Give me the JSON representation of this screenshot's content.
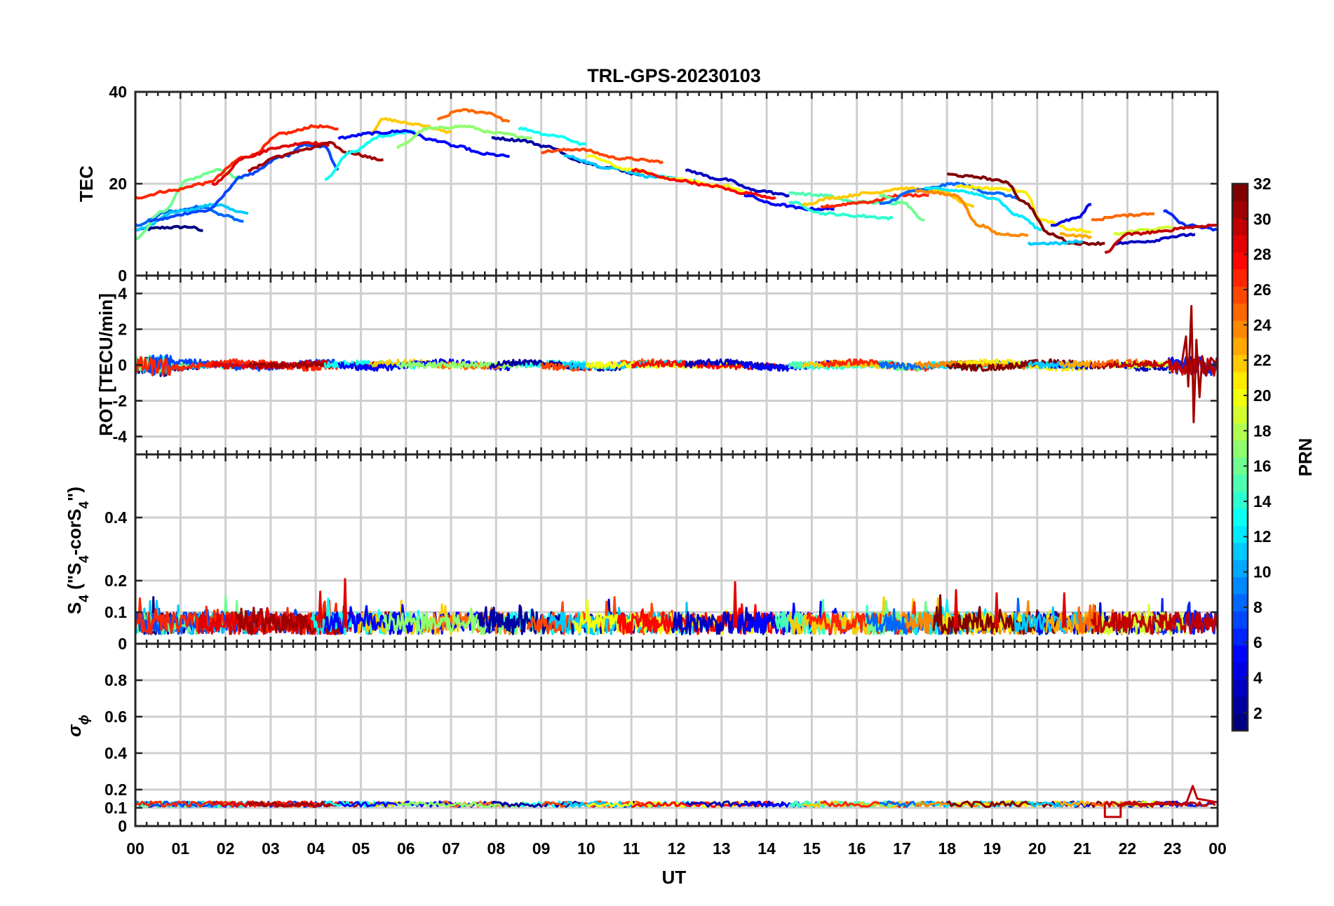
{
  "chart_data": {
    "type": "line",
    "title": "TRL-GPS-20230103",
    "xlabel": "UT",
    "x_ticks": [
      "00",
      "01",
      "02",
      "03",
      "04",
      "05",
      "06",
      "07",
      "08",
      "09",
      "10",
      "11",
      "12",
      "13",
      "14",
      "15",
      "16",
      "17",
      "18",
      "19",
      "20",
      "21",
      "22",
      "23",
      "00"
    ],
    "xlim_hours": [
      0,
      24
    ],
    "grid": true,
    "colorbar": {
      "label": "PRN",
      "range": [
        1,
        32
      ],
      "ticks": [
        "2",
        "4",
        "6",
        "8",
        "10",
        "12",
        "14",
        "16",
        "18",
        "20",
        "22",
        "24",
        "26",
        "28",
        "30",
        "32"
      ],
      "colormap": "jet"
    },
    "panels": [
      {
        "name": "tec",
        "ylabel": "TEC",
        "ylim": [
          0,
          40
        ],
        "yticks": [
          "0",
          "20",
          "40"
        ],
        "series": [
          {
            "prn": 1,
            "points": [
              [
                0,
                10
              ],
              [
                0.8,
                10.5
              ],
              [
                1.2,
                10.6
              ],
              [
                1.5,
                9.8
              ]
            ]
          },
          {
            "prn": 8,
            "points": [
              [
                0,
                11
              ],
              [
                0.8,
                14
              ],
              [
                1.5,
                15
              ],
              [
                2,
                13
              ],
              [
                2.4,
                11.8
              ]
            ]
          },
          {
            "prn": 11,
            "points": [
              [
                0,
                10
              ],
              [
                1,
                14
              ],
              [
                1.8,
                15.5
              ],
              [
                2.2,
                14.2
              ],
              [
                2.5,
                13.5
              ]
            ]
          },
          {
            "prn": 16,
            "points": [
              [
                0,
                8
              ],
              [
                0.6,
                14
              ],
              [
                1.2,
                21
              ],
              [
                1.8,
                23
              ],
              [
                2.4,
                21
              ]
            ]
          },
          {
            "prn": 7,
            "points": [
              [
                0.3,
                12
              ],
              [
                1.5,
                14
              ],
              [
                2.5,
                22
              ],
              [
                3.3,
                26
              ],
              [
                3.8,
                28.5
              ],
              [
                4.2,
                28
              ],
              [
                4.5,
                23
              ]
            ]
          },
          {
            "prn": 27,
            "points": [
              [
                0,
                17
              ],
              [
                0.8,
                18.5
              ],
              [
                1.5,
                20
              ],
              [
                2.5,
                26
              ],
              [
                3.3,
                31
              ],
              [
                4,
                32.5
              ],
              [
                4.5,
                32
              ]
            ]
          },
          {
            "prn": 29,
            "points": [
              [
                1.7,
                20
              ],
              [
                2.5,
                26
              ],
              [
                3.2,
                28
              ],
              [
                3.8,
                29
              ],
              [
                4.3,
                28.5
              ]
            ]
          },
          {
            "prn": 31,
            "points": [
              [
                2.5,
                23
              ],
              [
                3.2,
                26
              ],
              [
                3.8,
                27.5
              ],
              [
                4.3,
                28.8
              ],
              [
                4.7,
                26.8
              ],
              [
                5.5,
                25.2
              ]
            ]
          },
          {
            "prn": 13,
            "points": [
              [
                4.2,
                21
              ],
              [
                4.8,
                27
              ],
              [
                5.5,
                30.5
              ],
              [
                6.2,
                31.5
              ]
            ]
          },
          {
            "prn": 22,
            "points": [
              [
                5.2,
                31
              ],
              [
                5.5,
                34
              ],
              [
                6.2,
                33
              ],
              [
                7,
                31.2
              ]
            ]
          },
          {
            "prn": 5,
            "points": [
              [
                4.5,
                30
              ],
              [
                5.3,
                31
              ],
              [
                6,
                31.5
              ],
              [
                6.6,
                29.5
              ],
              [
                7.2,
                28
              ],
              [
                7.7,
                26.5
              ],
              [
                8.3,
                26
              ]
            ]
          },
          {
            "prn": 25,
            "points": [
              [
                6.7,
                34
              ],
              [
                7.2,
                36
              ],
              [
                7.8,
                35.5
              ],
              [
                8.3,
                33.5
              ]
            ]
          },
          {
            "prn": 17,
            "points": [
              [
                5.8,
                28
              ],
              [
                6.5,
                32
              ],
              [
                7.3,
                32.5
              ],
              [
                8,
                31
              ],
              [
                8.8,
                30
              ]
            ]
          },
          {
            "prn": 13,
            "points": [
              [
                8.5,
                32
              ],
              [
                9.3,
                30.5
              ],
              [
                10,
                28.5
              ]
            ]
          },
          {
            "prn": 2,
            "points": [
              [
                7.9,
                30
              ],
              [
                8.5,
                29.5
              ],
              [
                9.2,
                28
              ],
              [
                9.8,
                25
              ],
              [
                10.5,
                23.5
              ],
              [
                11.2,
                22
              ]
            ]
          },
          {
            "prn": 26,
            "points": [
              [
                9,
                27
              ],
              [
                9.8,
                27.5
              ],
              [
                10.8,
                25.5
              ],
              [
                11.7,
                24.8
              ]
            ]
          },
          {
            "prn": 11,
            "points": [
              [
                9.5,
                26
              ],
              [
                10.5,
                23.5
              ],
              [
                11.5,
                21.5
              ],
              [
                12.5,
                20.5
              ]
            ]
          },
          {
            "prn": 20,
            "points": [
              [
                10,
                26
              ],
              [
                11,
                23
              ],
              [
                12,
                21
              ],
              [
                13,
                19.5
              ],
              [
                13.8,
                17.5
              ]
            ]
          },
          {
            "prn": 28,
            "points": [
              [
                11,
                23
              ],
              [
                12,
                20.8
              ],
              [
                12.8,
                19.5
              ],
              [
                13.5,
                18
              ],
              [
                14.2,
                17
              ]
            ]
          },
          {
            "prn": 3,
            "points": [
              [
                12.2,
                22.8
              ],
              [
                13,
                21
              ],
              [
                13.8,
                18.5
              ],
              [
                14.5,
                17.5
              ]
            ]
          },
          {
            "prn": 5,
            "points": [
              [
                13.5,
                17.5
              ],
              [
                14.2,
                15.5
              ],
              [
                14.9,
                14.5
              ],
              [
                15.5,
                14.5
              ]
            ]
          },
          {
            "prn": 14,
            "points": [
              [
                14.5,
                16
              ],
              [
                15.3,
                13.5
              ],
              [
                16,
                13
              ],
              [
                16.8,
                12.5
              ]
            ]
          },
          {
            "prn": 15,
            "points": [
              [
                14.5,
                18
              ],
              [
                15.2,
                17.5
              ],
              [
                16,
                16
              ],
              [
                16.9,
                15.8
              ]
            ]
          },
          {
            "prn": 22,
            "points": [
              [
                14.8,
                15.5
              ],
              [
                15.5,
                17
              ],
              [
                16.3,
                18
              ],
              [
                17,
                19
              ],
              [
                17.8,
                18.5
              ],
              [
                18.6,
                15
              ]
            ]
          },
          {
            "prn": 27,
            "points": [
              [
                15.2,
                15
              ],
              [
                16.2,
                16
              ],
              [
                17,
                17.5
              ],
              [
                17.6,
                17.5
              ]
            ]
          },
          {
            "prn": 16,
            "points": [
              [
                16.5,
                17.5
              ],
              [
                17,
                16
              ],
              [
                17.5,
                12
              ]
            ]
          },
          {
            "prn": 8,
            "points": [
              [
                16.5,
                15.5
              ],
              [
                17.3,
                18.5
              ],
              [
                18.2,
                20
              ],
              [
                19,
                18
              ],
              [
                19.6,
                17
              ]
            ]
          },
          {
            "prn": 12,
            "points": [
              [
                17.5,
                19
              ],
              [
                18.2,
                18.5
              ],
              [
                19,
                17
              ],
              [
                19.6,
                13
              ],
              [
                20.1,
                10
              ]
            ]
          },
          {
            "prn": 24,
            "points": [
              [
                17.3,
                18.5
              ],
              [
                18.2,
                17.5
              ],
              [
                18.7,
                11
              ],
              [
                19.2,
                9
              ],
              [
                19.8,
                8.8
              ]
            ]
          },
          {
            "prn": 21,
            "points": [
              [
                18.2,
                19.5
              ],
              [
                19,
                19
              ],
              [
                19.7,
                18.5
              ],
              [
                20.1,
                12
              ],
              [
                20.8,
                10
              ],
              [
                21.2,
                9.5
              ]
            ]
          },
          {
            "prn": 32,
            "points": [
              [
                18,
                22
              ],
              [
                18.6,
                21.5
              ],
              [
                19.3,
                20.5
              ],
              [
                19.7,
                16
              ],
              [
                20.3,
                9
              ],
              [
                20.8,
                7
              ],
              [
                21.5,
                7
              ]
            ]
          },
          {
            "prn": 4,
            "points": [
              [
                20.3,
                11
              ],
              [
                20.9,
                12.5
              ],
              [
                21.2,
                15.5
              ]
            ]
          },
          {
            "prn": 11,
            "points": [
              [
                19.8,
                7
              ],
              [
                20.5,
                7
              ],
              [
                21,
                7.5
              ]
            ]
          },
          {
            "prn": 23,
            "points": [
              [
                20.5,
                9
              ],
              [
                21.2,
                8.5
              ]
            ]
          },
          {
            "prn": 25,
            "points": [
              [
                21.2,
                12
              ],
              [
                21.8,
                13
              ],
              [
                22.6,
                13.5
              ]
            ]
          },
          {
            "prn": 3,
            "points": [
              [
                21.7,
                7
              ],
              [
                22.5,
                7.5
              ],
              [
                23,
                8.5
              ],
              [
                23.5,
                9
              ]
            ]
          },
          {
            "prn": 6,
            "points": [
              [
                22.8,
                14
              ],
              [
                23.3,
                11
              ],
              [
                24,
                10
              ]
            ]
          },
          {
            "prn": 19,
            "points": [
              [
                21.7,
                9
              ],
              [
                22.4,
                10
              ],
              [
                23,
                10.5
              ]
            ]
          },
          {
            "prn": 30,
            "points": [
              [
                21.5,
                5
              ],
              [
                22,
                9
              ],
              [
                22.7,
                9.5
              ],
              [
                23.3,
                10.5
              ],
              [
                24,
                11
              ]
            ]
          }
        ]
      },
      {
        "name": "rot",
        "ylabel": "ROT [TECU/min]",
        "ylim": [
          -5,
          5
        ],
        "yticks": [
          "-4",
          "-2",
          "0",
          "2",
          "4"
        ],
        "noise_amplitude": [
          0.1,
          0.6
        ],
        "spike_range": [
          -3.2,
          3.3
        ]
      },
      {
        "name": "s4",
        "ylabel_main": "S",
        "ylabel_sub": "4",
        "ylabel_mid": " (\"S",
        "ylabel_sub2": "4",
        "ylabel_mid2": "-corS",
        "ylabel_sub3": "4",
        "ylabel_tail": "\")",
        "ylim": [
          0,
          0.6
        ],
        "yticks": [
          "0",
          "0.1",
          "0.2",
          "0.4"
        ],
        "typical_range": [
          0.02,
          0.14
        ],
        "max_value": 0.21
      },
      {
        "name": "sigma-phi",
        "ylabel_main": "σ",
        "ylabel_sub": "ϕ",
        "ylim": [
          0,
          1
        ],
        "yticks": [
          "0",
          "0.1",
          "0.2",
          "0.4",
          "0.6",
          "0.8"
        ],
        "baseline": 0.12,
        "spike_max": 0.22
      }
    ]
  }
}
